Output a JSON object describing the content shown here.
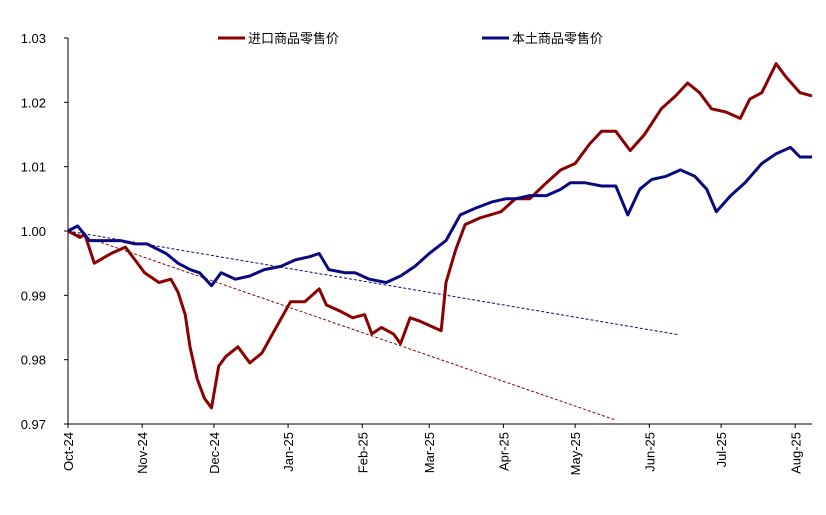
{
  "chart_data": {
    "type": "line",
    "xlim": [
      0,
      311
    ],
    "xticks": [
      {
        "value": 0,
        "label": "Oct-24"
      },
      {
        "value": 31,
        "label": "Nov-24"
      },
      {
        "value": 61,
        "label": "Dec-24"
      },
      {
        "value": 92,
        "label": "Jan-25"
      },
      {
        "value": 123,
        "label": "Feb-25"
      },
      {
        "value": 151,
        "label": "Mar-25"
      },
      {
        "value": 182,
        "label": "Apr-25"
      },
      {
        "value": 212,
        "label": "May-25"
      },
      {
        "value": 243,
        "label": "Jun-25"
      },
      {
        "value": 273,
        "label": "Jul-25"
      },
      {
        "value": 304,
        "label": "Aug-25"
      }
    ],
    "ylim": [
      0.97,
      1.03
    ],
    "yticks": [
      0.97,
      0.98,
      0.99,
      {
        "value": 1.0,
        "label": "1.00"
      },
      1.01,
      1.02,
      1.03
    ],
    "legend": "top",
    "series": [
      {
        "name": "进口商品零售价",
        "color": "#8b0000",
        "x": [
          0,
          5,
          7,
          11,
          18,
          24,
          28,
          32,
          38,
          43,
          46,
          49,
          51,
          54,
          57,
          60,
          63,
          66,
          71,
          76,
          81,
          87,
          93,
          99,
          105,
          108,
          114,
          119,
          124,
          127,
          131,
          136,
          139,
          143,
          147,
          156,
          158,
          162,
          166,
          172,
          181,
          187,
          193,
          200,
          206,
          212,
          218,
          223,
          229,
          235,
          241,
          248,
          254,
          259,
          264,
          269,
          275,
          281,
          285,
          290,
          296,
          300,
          306,
          311
        ],
        "values": [
          1.0,
          0.999,
          0.9995,
          0.995,
          0.9965,
          0.9975,
          0.9955,
          0.9935,
          0.992,
          0.9925,
          0.9905,
          0.987,
          0.982,
          0.977,
          0.974,
          0.9725,
          0.979,
          0.9805,
          0.982,
          0.9795,
          0.981,
          0.985,
          0.989,
          0.989,
          0.991,
          0.9885,
          0.9875,
          0.9865,
          0.987,
          0.984,
          0.985,
          0.984,
          0.9825,
          0.9865,
          0.986,
          0.9845,
          0.992,
          0.997,
          1.001,
          1.002,
          1.003,
          1.005,
          1.005,
          1.0075,
          1.0095,
          1.0105,
          1.0135,
          1.0155,
          1.0155,
          1.0125,
          1.015,
          1.019,
          1.021,
          1.023,
          1.0215,
          1.019,
          1.0185,
          1.0175,
          1.0205,
          1.0215,
          1.026,
          1.024,
          1.0215,
          1.021
        ]
      },
      {
        "name": "本土商品零售价",
        "color": "#0a0a80",
        "x": [
          0,
          4,
          9,
          15,
          22,
          28,
          33,
          41,
          46,
          51,
          55,
          60,
          64,
          70,
          76,
          82,
          89,
          95,
          101,
          105,
          109,
          116,
          120,
          126,
          133,
          139,
          145,
          151,
          158,
          164,
          170,
          177,
          183,
          187,
          193,
          200,
          206,
          210,
          216,
          223,
          229,
          234,
          239,
          244,
          250,
          256,
          262,
          267,
          271,
          277,
          283,
          290,
          296,
          302,
          306,
          311
        ],
        "values": [
          1.0,
          1.0008,
          0.9985,
          0.9985,
          0.9985,
          0.998,
          0.998,
          0.9965,
          0.995,
          0.994,
          0.9935,
          0.9915,
          0.9935,
          0.9925,
          0.993,
          0.994,
          0.9945,
          0.9955,
          0.996,
          0.9965,
          0.994,
          0.9935,
          0.9935,
          0.9925,
          0.992,
          0.993,
          0.9945,
          0.9965,
          0.9985,
          1.0025,
          1.0035,
          1.0045,
          1.005,
          1.005,
          1.0055,
          1.0055,
          1.0065,
          1.0075,
          1.0075,
          1.007,
          1.007,
          1.0025,
          1.0065,
          1.008,
          1.0085,
          1.0095,
          1.0085,
          1.0065,
          1.003,
          1.0055,
          1.0075,
          1.0105,
          1.012,
          1.013,
          1.0115,
          1.0115
        ]
      }
    ],
    "trendlines": [
      {
        "color": "#0a0a80",
        "x": [
          0,
          255
        ],
        "values": [
          1.0,
          0.9839
        ]
      },
      {
        "color": "#8b0000",
        "x": [
          0,
          229
        ],
        "values": [
          1.0,
          0.9706
        ]
      }
    ]
  }
}
